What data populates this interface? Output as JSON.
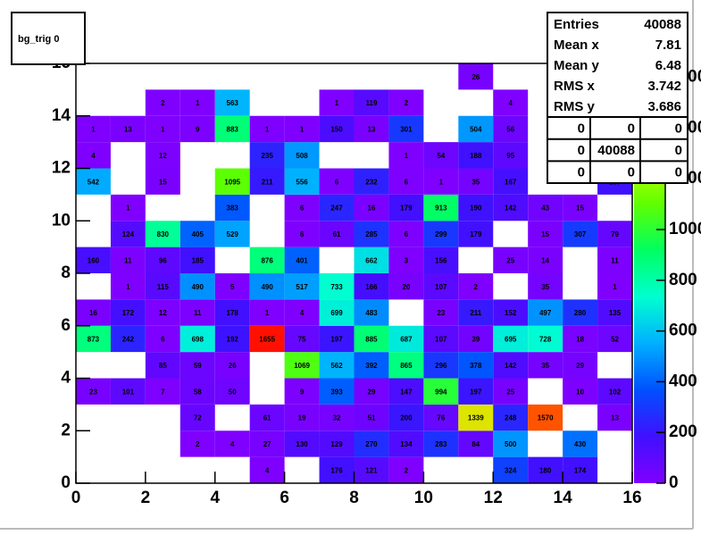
{
  "chart_data": {
    "type": "heatmap",
    "title": "bg_trig 0",
    "xbins": [
      0,
      1,
      2,
      3,
      4,
      5,
      6,
      7,
      8,
      9,
      10,
      11,
      12,
      13,
      14,
      15,
      16
    ],
    "ybins": [
      0,
      1,
      2,
      3,
      4,
      5,
      6,
      7,
      8,
      9,
      10,
      11,
      12,
      13,
      14,
      15,
      16
    ],
    "values": [
      [
        null,
        null,
        null,
        null,
        null,
        4,
        null,
        176,
        121,
        2,
        null,
        null,
        324,
        180,
        174,
        null
      ],
      [
        null,
        null,
        null,
        2,
        4,
        27,
        130,
        129,
        270,
        134,
        283,
        84,
        500,
        null,
        430,
        null
      ],
      [
        null,
        null,
        null,
        72,
        null,
        61,
        19,
        32,
        51,
        200,
        76,
        1339,
        248,
        1570,
        null,
        13
      ],
      [
        23,
        101,
        7,
        58,
        50,
        null,
        9,
        393,
        29,
        147,
        994,
        197,
        25,
        null,
        10,
        102
      ],
      [
        null,
        null,
        85,
        59,
        26,
        null,
        1069,
        562,
        392,
        865,
        296,
        378,
        142,
        35,
        29,
        null
      ],
      [
        873,
        242,
        6,
        698,
        192,
        1655,
        75,
        197,
        885,
        687,
        107,
        39,
        695,
        728,
        18,
        52
      ],
      [
        16,
        172,
        12,
        11,
        178,
        1,
        4,
        699,
        483,
        null,
        23,
        211,
        152,
        497,
        280,
        135
      ],
      [
        null,
        1,
        115,
        490,
        5,
        490,
        517,
        733,
        166,
        20,
        107,
        2,
        null,
        35,
        null,
        1
      ],
      [
        160,
        11,
        96,
        185,
        null,
        876,
        401,
        null,
        662,
        3,
        156,
        null,
        25,
        14,
        null,
        11
      ],
      [
        null,
        124,
        830,
        405,
        529,
        null,
        6,
        61,
        285,
        6,
        299,
        179,
        null,
        15,
        307,
        79
      ],
      [
        null,
        1,
        null,
        null,
        383,
        null,
        6,
        247,
        16,
        179,
        913,
        190,
        142,
        43,
        15,
        null
      ],
      [
        542,
        null,
        15,
        null,
        1095,
        211,
        556,
        6,
        232,
        6,
        1,
        35,
        167,
        null,
        null,
        187
      ],
      [
        4,
        null,
        12,
        null,
        null,
        235,
        508,
        null,
        null,
        1,
        54,
        188,
        95,
        null,
        null,
        null
      ],
      [
        1,
        13,
        1,
        9,
        883,
        1,
        1,
        150,
        13,
        301,
        null,
        504,
        56,
        null,
        null,
        null
      ],
      [
        null,
        null,
        2,
        1,
        563,
        null,
        null,
        1,
        119,
        2,
        null,
        null,
        4,
        null,
        null,
        null
      ],
      [
        null,
        null,
        null,
        null,
        null,
        null,
        null,
        null,
        null,
        null,
        null,
        26,
        null,
        null,
        null,
        null
      ]
    ],
    "xlim": [
      0,
      16
    ],
    "ylim": [
      0,
      16
    ],
    "zlim": [
      0,
      1655
    ],
    "xticks": [
      0,
      2,
      4,
      6,
      8,
      10,
      12,
      14,
      16
    ],
    "yticks": [
      0,
      2,
      4,
      6,
      8,
      10,
      12,
      14,
      16
    ],
    "zticks": [
      0,
      200,
      400,
      600,
      800,
      1000,
      1200,
      1400,
      1600
    ],
    "palette": [
      "#8000ff",
      "#4010ff",
      "#0050ff",
      "#00b0ff",
      "#00ffd0",
      "#00ff60",
      "#60ff00",
      "#d0ff00",
      "#ffa000",
      "#ff1000"
    ],
    "stats": {
      "rows": [
        {
          "label": "Entries",
          "value": 40088
        },
        {
          "label": "Mean x",
          "value": 7.81
        },
        {
          "label": "Mean y",
          "value": 6.48
        },
        {
          "label": "RMS x",
          "value": 3.742
        },
        {
          "label": "RMS y",
          "value": 3.686
        }
      ],
      "overflow": [
        [
          0,
          0,
          0
        ],
        [
          0,
          40088,
          0
        ],
        [
          0,
          0,
          0
        ]
      ]
    }
  }
}
